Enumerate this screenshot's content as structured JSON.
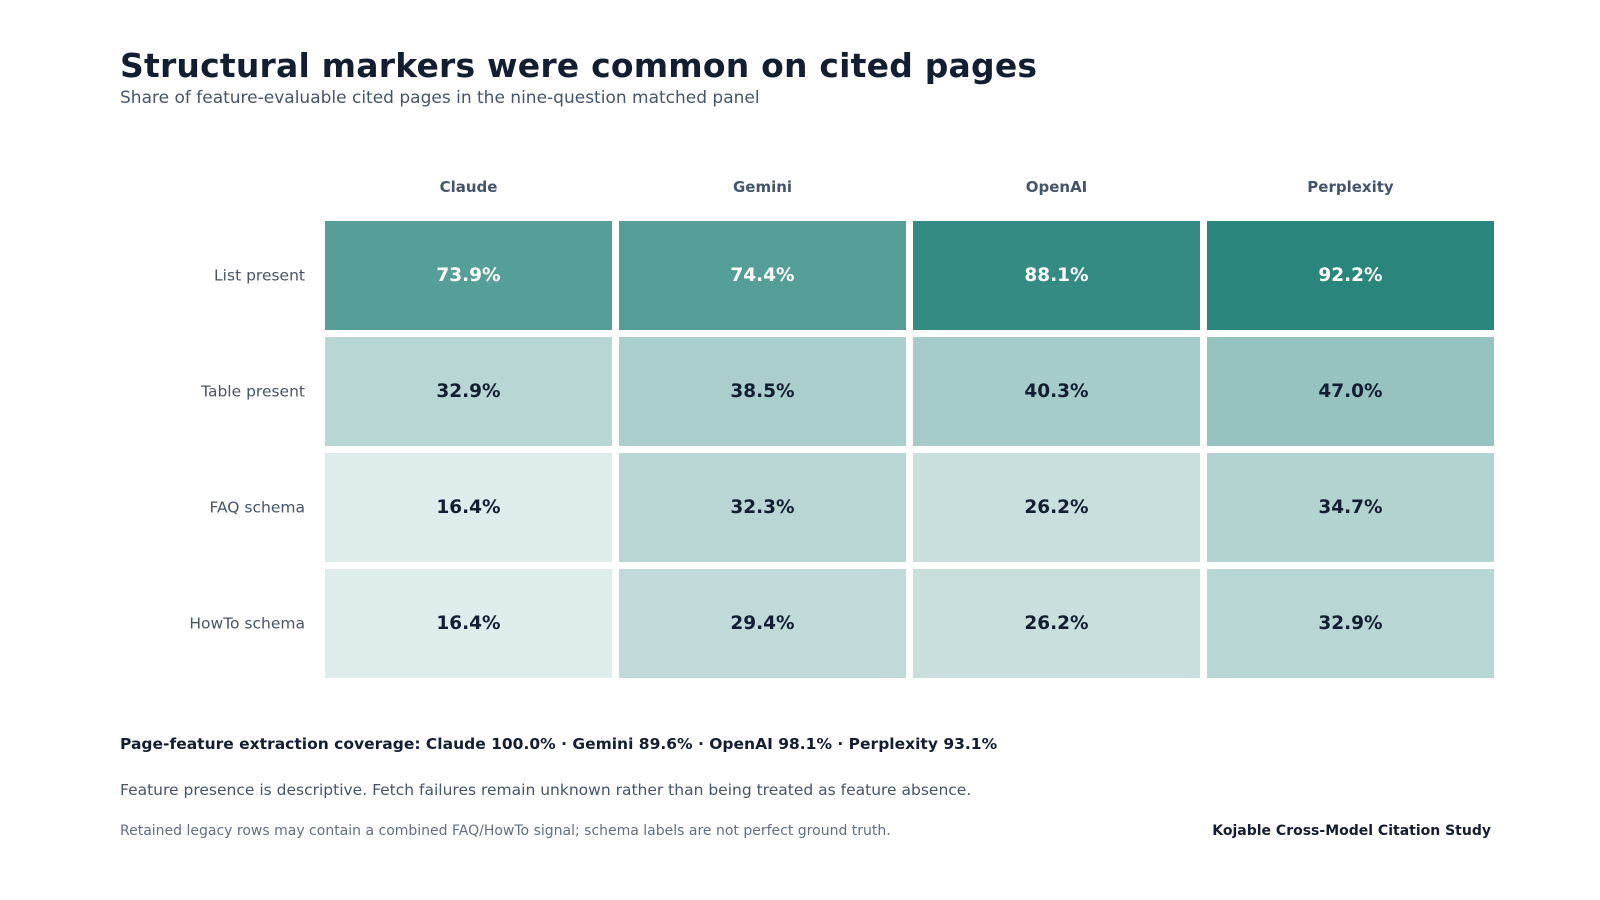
{
  "header": {
    "title": "Structural markers were common on cited pages",
    "subtitle": "Share of feature-evaluable cited pages in the nine-question matched panel"
  },
  "chart_data": {
    "type": "heatmap",
    "title": "Structural markers were common on cited pages",
    "subtitle": "Share of feature-evaluable cited pages in the nine-question matched panel",
    "columns": [
      "Claude",
      "Gemini",
      "OpenAI",
      "Perplexity"
    ],
    "rows": [
      "List present",
      "Table present",
      "FAQ schema",
      "HowTo schema"
    ],
    "values": [
      [
        73.9,
        74.4,
        88.1,
        92.2
      ],
      [
        32.9,
        38.5,
        40.3,
        47.0
      ],
      [
        16.4,
        32.3,
        26.2,
        34.7
      ],
      [
        16.4,
        29.4,
        26.2,
        32.9
      ]
    ],
    "value_format": "percent",
    "color_low": "#dfecec",
    "color_high": "#2a857d",
    "text_color_dark": "#131e33",
    "text_color_light": "#ffffff"
  },
  "footer": {
    "coverage": "Page-feature extraction coverage: Claude 100.0%  ·  Gemini 89.6%  ·  OpenAI 98.1%  ·  Perplexity 93.1%",
    "note": "Feature presence is descriptive. Fetch failures remain unknown rather than being treated as feature absence.",
    "caveat": "Retained legacy rows may contain a combined FAQ/HowTo signal; schema labels are not perfect ground truth.",
    "source": "Kojable Cross-Model Citation Study"
  }
}
